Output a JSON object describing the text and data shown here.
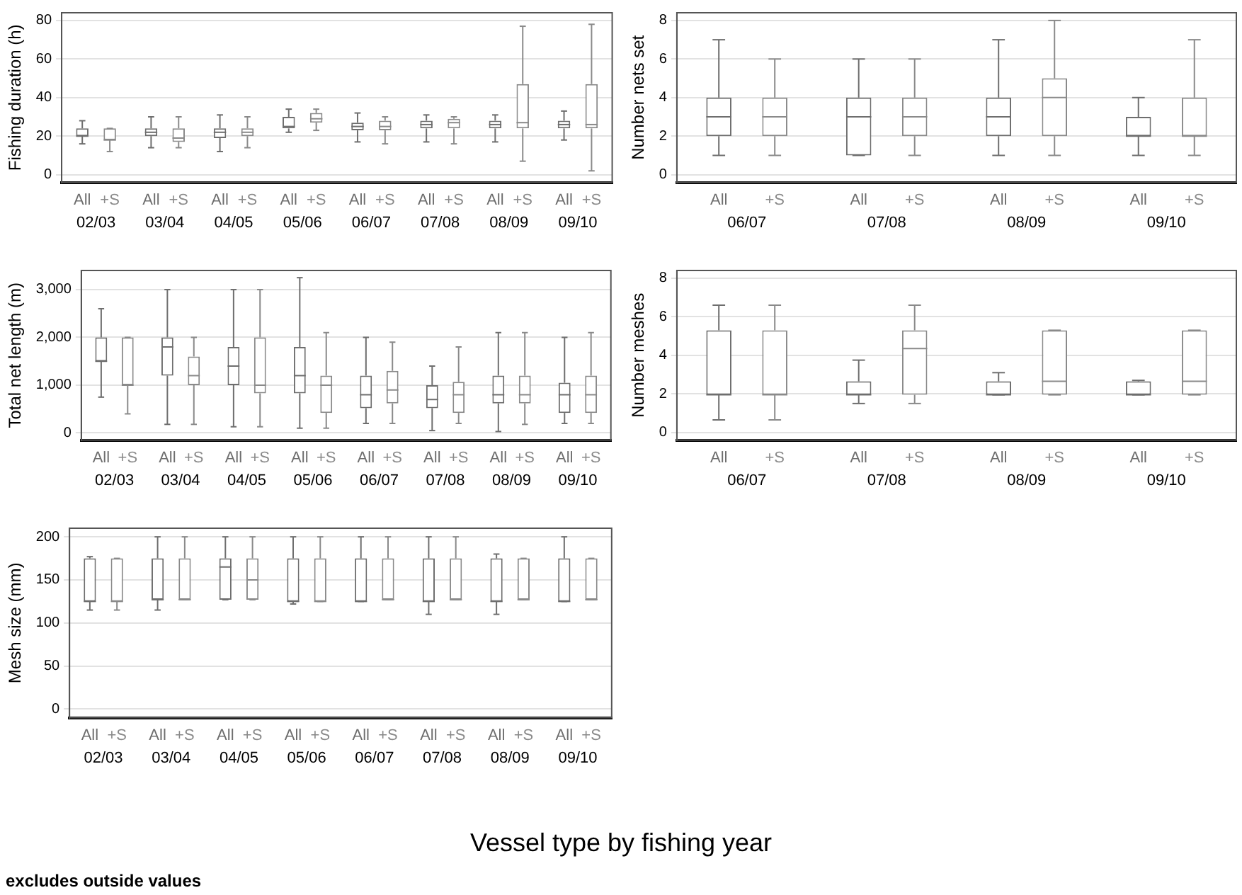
{
  "chart_data": [
    {
      "type": "box",
      "ylabel": "Fishing duration (h)",
      "categories": [
        "02/03",
        "03/04",
        "04/05",
        "05/06",
        "06/07",
        "07/08",
        "08/09",
        "09/10"
      ],
      "ylim": [
        -4,
        84
      ],
      "yticks": [
        0,
        20,
        40,
        60,
        80
      ],
      "grid": "y",
      "legend": false,
      "series": [
        {
          "name": "All",
          "color": "#6e6e6e",
          "boxes": [
            {
              "low": 16,
              "q1": 20,
              "median": 20,
              "q3": 24,
              "high": 28
            },
            {
              "low": 14,
              "q1": 20,
              "median": 22,
              "q3": 24,
              "high": 30
            },
            {
              "low": 12,
              "q1": 19,
              "median": 22,
              "q3": 24,
              "high": 31
            },
            {
              "low": 22,
              "q1": 24,
              "median": 25,
              "q3": 30,
              "high": 34
            },
            {
              "low": 17,
              "q1": 23,
              "median": 25,
              "q3": 27,
              "high": 32
            },
            {
              "low": 17,
              "q1": 24,
              "median": 26,
              "q3": 28,
              "high": 31
            },
            {
              "low": 17,
              "q1": 24,
              "median": 26,
              "q3": 28,
              "high": 31
            },
            {
              "low": 18,
              "q1": 24,
              "median": 26,
              "q3": 28,
              "high": 33
            }
          ]
        },
        {
          "name": "+S",
          "color": "#8a8a8a",
          "boxes": [
            {
              "low": 12,
              "q1": 18,
              "median": 18,
              "q3": 24,
              "high": 24
            },
            {
              "low": 14,
              "q1": 17,
              "median": 19,
              "q3": 24,
              "high": 30
            },
            {
              "low": 14,
              "q1": 20,
              "median": 22,
              "q3": 24,
              "high": 30
            },
            {
              "low": 23,
              "q1": 27,
              "median": 29,
              "q3": 32,
              "high": 34
            },
            {
              "low": 16,
              "q1": 23,
              "median": 25,
              "q3": 28,
              "high": 30
            },
            {
              "low": 16,
              "q1": 24,
              "median": 27,
              "q3": 29,
              "high": 30
            },
            {
              "low": 7,
              "q1": 24,
              "median": 27,
              "q3": 47,
              "high": 77
            },
            {
              "low": 2,
              "q1": 24,
              "median": 26,
              "q3": 47,
              "high": 78
            }
          ]
        }
      ]
    },
    {
      "type": "box",
      "ylabel": "Number nets set",
      "categories": [
        "06/07",
        "07/08",
        "08/09",
        "09/10"
      ],
      "ylim": [
        -0.4,
        8.4
      ],
      "yticks": [
        0,
        2,
        4,
        6,
        8
      ],
      "grid": "y",
      "legend": false,
      "series": [
        {
          "name": "All",
          "color": "#6e6e6e",
          "boxes": [
            {
              "low": 1,
              "q1": 2,
              "median": 3,
              "q3": 4,
              "high": 7
            },
            {
              "low": 1,
              "q1": 1,
              "median": 3,
              "q3": 4,
              "high": 6
            },
            {
              "low": 1,
              "q1": 2,
              "median": 3,
              "q3": 4,
              "high": 7
            },
            {
              "low": 1,
              "q1": 2,
              "median": 2,
              "q3": 3,
              "high": 4
            }
          ]
        },
        {
          "name": "+S",
          "color": "#8a8a8a",
          "boxes": [
            {
              "low": 1,
              "q1": 2,
              "median": 3,
              "q3": 4,
              "high": 6
            },
            {
              "low": 1,
              "q1": 2,
              "median": 3,
              "q3": 4,
              "high": 6
            },
            {
              "low": 1,
              "q1": 2,
              "median": 4,
              "q3": 5,
              "high": 8
            },
            {
              "low": 1,
              "q1": 2,
              "median": 2,
              "q3": 4,
              "high": 7
            }
          ]
        }
      ]
    },
    {
      "type": "box",
      "ylabel": "Total net length (m)",
      "categories": [
        "02/03",
        "03/04",
        "04/05",
        "05/06",
        "06/07",
        "07/08",
        "08/09",
        "09/10"
      ],
      "ylim": [
        -150,
        3400
      ],
      "yticks": [
        0,
        {
          "value": 1000,
          "label": "1,000"
        },
        {
          "value": 2000,
          "label": "2,000"
        },
        {
          "value": 3000,
          "label": "3,000"
        }
      ],
      "grid": "y",
      "legend": false,
      "series": [
        {
          "name": "All",
          "color": "#6e6e6e",
          "boxes": [
            {
              "low": 750,
              "q1": 1500,
              "median": 1500,
              "q3": 2000,
              "high": 2600
            },
            {
              "low": 180,
              "q1": 1200,
              "median": 1800,
              "q3": 2000,
              "high": 3000
            },
            {
              "low": 130,
              "q1": 1000,
              "median": 1400,
              "q3": 1800,
              "high": 3000
            },
            {
              "low": 100,
              "q1": 830,
              "median": 1200,
              "q3": 1800,
              "high": 3250
            },
            {
              "low": 200,
              "q1": 520,
              "median": 800,
              "q3": 1200,
              "high": 2000
            },
            {
              "low": 50,
              "q1": 520,
              "median": 700,
              "q3": 1000,
              "high": 1400
            },
            {
              "low": 30,
              "q1": 620,
              "median": 800,
              "q3": 1200,
              "high": 2100
            },
            {
              "low": 200,
              "q1": 420,
              "median": 800,
              "q3": 1050,
              "high": 2000
            }
          ]
        },
        {
          "name": "+S",
          "color": "#8a8a8a",
          "boxes": [
            {
              "low": 400,
              "q1": 1000,
              "median": 1000,
              "q3": 2000,
              "high": 2000
            },
            {
              "low": 180,
              "q1": 1000,
              "median": 1200,
              "q3": 1600,
              "high": 2000
            },
            {
              "low": 130,
              "q1": 830,
              "median": 1000,
              "q3": 2000,
              "high": 3000
            },
            {
              "low": 100,
              "q1": 420,
              "median": 1000,
              "q3": 1200,
              "high": 2100
            },
            {
              "low": 200,
              "q1": 620,
              "median": 900,
              "q3": 1300,
              "high": 1900
            },
            {
              "low": 200,
              "q1": 420,
              "median": 800,
              "q3": 1070,
              "high": 1800
            },
            {
              "low": 180,
              "q1": 620,
              "median": 800,
              "q3": 1200,
              "high": 2100
            },
            {
              "low": 200,
              "q1": 420,
              "median": 800,
              "q3": 1200,
              "high": 2100
            }
          ]
        }
      ]
    },
    {
      "type": "box",
      "ylabel": "Number meshes",
      "categories": [
        "06/07",
        "07/08",
        "08/09",
        "09/10"
      ],
      "ylim": [
        -0.4,
        8.4
      ],
      "yticks": [
        0,
        2,
        4,
        6,
        8
      ],
      "grid": "y",
      "legend": false,
      "series": [
        {
          "name": "All",
          "color": "#6e6e6e",
          "boxes": [
            {
              "low": 0.65,
              "q1": 1.95,
              "median": 1.95,
              "q3": 5.3,
              "high": 6.6
            },
            {
              "low": 1.5,
              "q1": 1.95,
              "median": 1.95,
              "q3": 2.65,
              "high": 3.75
            },
            {
              "low": 1.95,
              "q1": 1.95,
              "median": 1.95,
              "q3": 2.65,
              "high": 3.1
            },
            {
              "low": 1.95,
              "q1": 1.95,
              "median": 1.95,
              "q3": 2.65,
              "high": 2.7
            }
          ]
        },
        {
          "name": "+S",
          "color": "#8a8a8a",
          "boxes": [
            {
              "low": 0.65,
              "q1": 1.95,
              "median": 1.95,
              "q3": 5.3,
              "high": 6.6
            },
            {
              "low": 1.5,
              "q1": 1.95,
              "median": 4.35,
              "q3": 5.3,
              "high": 6.6
            },
            {
              "low": 1.95,
              "q1": 1.95,
              "median": 2.65,
              "q3": 5.3,
              "high": 5.3
            },
            {
              "low": 1.95,
              "q1": 1.95,
              "median": 2.65,
              "q3": 5.3,
              "high": 5.3
            }
          ]
        }
      ]
    },
    {
      "type": "box",
      "ylabel": "Mesh size (mm)",
      "categories": [
        "02/03",
        "03/04",
        "04/05",
        "05/06",
        "06/07",
        "07/08",
        "08/09",
        "09/10"
      ],
      "ylim": [
        -10,
        210
      ],
      "yticks": [
        0,
        50,
        100,
        150,
        200
      ],
      "grid": "y",
      "legend": false,
      "annotations": [
        "Vessel type by fishing year",
        "excludes outside values"
      ],
      "series": [
        {
          "name": "All",
          "color": "#6e6e6e",
          "boxes": [
            {
              "low": 115,
              "q1": 125,
              "median": 125,
              "q3": 175,
              "high": 177
            },
            {
              "low": 115,
              "q1": 127,
              "median": 127,
              "q3": 175,
              "high": 200
            },
            {
              "low": 127,
              "q1": 127,
              "median": 165,
              "q3": 175,
              "high": 200
            },
            {
              "low": 122,
              "q1": 125,
              "median": 125,
              "q3": 175,
              "high": 200
            },
            {
              "low": 125,
              "q1": 125,
              "median": 125,
              "q3": 175,
              "high": 200
            },
            {
              "low": 110,
              "q1": 125,
              "median": 125,
              "q3": 175,
              "high": 200
            },
            {
              "low": 110,
              "q1": 125,
              "median": 125,
              "q3": 175,
              "high": 180
            },
            {
              "low": 125,
              "q1": 125,
              "median": 125,
              "q3": 175,
              "high": 200
            }
          ]
        },
        {
          "name": "+S",
          "color": "#8a8a8a",
          "boxes": [
            {
              "low": 115,
              "q1": 125,
              "median": 125,
              "q3": 175,
              "high": 175
            },
            {
              "low": 127,
              "q1": 127,
              "median": 127,
              "q3": 175,
              "high": 200
            },
            {
              "low": 127,
              "q1": 127,
              "median": 150,
              "q3": 175,
              "high": 200
            },
            {
              "low": 125,
              "q1": 125,
              "median": 125,
              "q3": 175,
              "high": 200
            },
            {
              "low": 127,
              "q1": 127,
              "median": 127,
              "q3": 175,
              "high": 200
            },
            {
              "low": 127,
              "q1": 127,
              "median": 127,
              "q3": 175,
              "high": 200
            },
            {
              "low": 127,
              "q1": 127,
              "median": 127,
              "q3": 175,
              "high": 175
            },
            {
              "low": 127,
              "q1": 127,
              "median": 127,
              "q3": 175,
              "high": 175
            }
          ]
        }
      ]
    }
  ]
}
